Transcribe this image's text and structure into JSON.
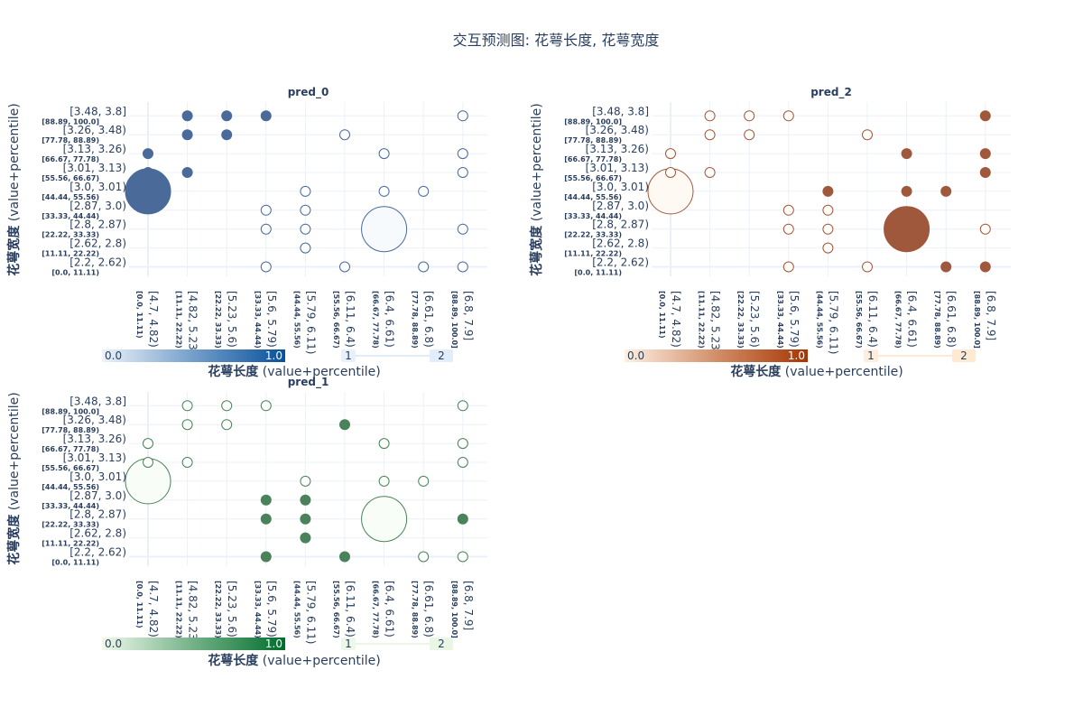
{
  "title": "交互预测图: 花萼长度, 花萼宽度",
  "x_tick_labels": [
    "[4.7, 4.82)",
    "[4.82, 5.23)",
    "[5.23, 5.6)",
    "[5.6, 5.79)",
    "[5.79, 6.11)",
    "[6.11, 6.4)",
    "[6.4, 6.61)",
    "[6.61, 6.8)",
    "[6.8, 7.9]"
  ],
  "x_tick_sublabels": [
    "[0.0, 11.11)",
    "[11.11, 22.22)",
    "[22.22, 33.33)",
    "[33.33, 44.44)",
    "[44.44, 55.56)",
    "[55.56, 66.67)",
    "[66.67, 77.78)",
    "[77.78, 88.89)",
    "[88.89, 100.0]"
  ],
  "y_tick_labels": [
    "[2.2, 2.62)",
    "[2.62, 2.8)",
    "[2.8, 2.87)",
    "[2.87, 3.0)",
    "[3.0, 3.01)",
    "[3.01, 3.13)",
    "[3.13, 3.26)",
    "[3.26, 3.48)",
    "[3.48, 3.8]"
  ],
  "y_tick_sublabels": [
    "[0.0, 11.11)",
    "[11.11, 22.22)",
    "[22.22, 33.33)",
    "[33.33, 44.44)",
    "[44.44, 55.56)",
    "[55.56, 66.67)",
    "[66.67, 77.78)",
    "[77.78, 88.89)",
    "[88.89, 100.0]"
  ],
  "xlabel_bold": "花萼长度",
  "xlabel_rest": " (value+percentile)",
  "ylabel_bold": "花萼宽度",
  "ylabel_rest": " (value+percentile)",
  "colorbar_min": "0.0",
  "colorbar_max": "1.0",
  "size_legend_min": "1",
  "size_legend_max": "2",
  "chart_data": [
    {
      "type": "scatter",
      "title": "pred_0",
      "colormap": [
        "#deebf7",
        "#08519c"
      ],
      "marker_color": "#4a6a99",
      "points": [
        {
          "x": 0,
          "y": 4,
          "value": 1.0,
          "count": 2
        },
        {
          "x": 0,
          "y": 5,
          "value": 1.0,
          "count": 1
        },
        {
          "x": 0,
          "y": 6,
          "value": 1.0,
          "count": 1
        },
        {
          "x": 1,
          "y": 5,
          "value": 1.0,
          "count": 1
        },
        {
          "x": 1,
          "y": 7,
          "value": 1.0,
          "count": 1
        },
        {
          "x": 1,
          "y": 8,
          "value": 1.0,
          "count": 1
        },
        {
          "x": 2,
          "y": 7,
          "value": 1.0,
          "count": 1
        },
        {
          "x": 2,
          "y": 8,
          "value": 1.0,
          "count": 1
        },
        {
          "x": 3,
          "y": 8,
          "value": 1.0,
          "count": 1
        },
        {
          "x": 3,
          "y": 3,
          "value": 0.0,
          "count": 1
        },
        {
          "x": 3,
          "y": 2,
          "value": 0.0,
          "count": 1
        },
        {
          "x": 3,
          "y": 0,
          "value": 0.0,
          "count": 1
        },
        {
          "x": 4,
          "y": 4,
          "value": 0.0,
          "count": 1
        },
        {
          "x": 4,
          "y": 3,
          "value": 0.0,
          "count": 1
        },
        {
          "x": 4,
          "y": 2,
          "value": 0.0,
          "count": 1
        },
        {
          "x": 4,
          "y": 1,
          "value": 0.0,
          "count": 1
        },
        {
          "x": 5,
          "y": 7,
          "value": 0.0,
          "count": 1
        },
        {
          "x": 5,
          "y": 0,
          "value": 0.0,
          "count": 1
        },
        {
          "x": 6,
          "y": 6,
          "value": 0.0,
          "count": 1
        },
        {
          "x": 6,
          "y": 4,
          "value": 0.0,
          "count": 1
        },
        {
          "x": 6,
          "y": 2,
          "value": 0.0,
          "count": 2
        },
        {
          "x": 7,
          "y": 4,
          "value": 0.0,
          "count": 1
        },
        {
          "x": 7,
          "y": 0,
          "value": 0.0,
          "count": 1
        },
        {
          "x": 8,
          "y": 8,
          "value": 0.0,
          "count": 1
        },
        {
          "x": 8,
          "y": 6,
          "value": 0.0,
          "count": 1
        },
        {
          "x": 8,
          "y": 5,
          "value": 0.0,
          "count": 1
        },
        {
          "x": 8,
          "y": 2,
          "value": 0.0,
          "count": 1
        },
        {
          "x": 8,
          "y": 0,
          "value": 0.0,
          "count": 1
        }
      ]
    },
    {
      "type": "scatter",
      "title": "pred_2",
      "colormap": [
        "#fee6ce",
        "#a63603"
      ],
      "marker_color": "#a0583d",
      "points": [
        {
          "x": 0,
          "y": 4,
          "value": 0.0,
          "count": 2
        },
        {
          "x": 0,
          "y": 5,
          "value": 0.0,
          "count": 1
        },
        {
          "x": 0,
          "y": 6,
          "value": 0.0,
          "count": 1
        },
        {
          "x": 1,
          "y": 5,
          "value": 0.0,
          "count": 1
        },
        {
          "x": 1,
          "y": 7,
          "value": 0.0,
          "count": 1
        },
        {
          "x": 1,
          "y": 8,
          "value": 0.0,
          "count": 1
        },
        {
          "x": 2,
          "y": 7,
          "value": 0.0,
          "count": 1
        },
        {
          "x": 2,
          "y": 8,
          "value": 0.0,
          "count": 1
        },
        {
          "x": 3,
          "y": 8,
          "value": 0.0,
          "count": 1
        },
        {
          "x": 3,
          "y": 3,
          "value": 0.0,
          "count": 1
        },
        {
          "x": 3,
          "y": 2,
          "value": 0.0,
          "count": 1
        },
        {
          "x": 3,
          "y": 0,
          "value": 0.0,
          "count": 1
        },
        {
          "x": 4,
          "y": 4,
          "value": 1.0,
          "count": 1
        },
        {
          "x": 4,
          "y": 3,
          "value": 0.0,
          "count": 1
        },
        {
          "x": 4,
          "y": 2,
          "value": 0.0,
          "count": 1
        },
        {
          "x": 4,
          "y": 1,
          "value": 0.0,
          "count": 1
        },
        {
          "x": 5,
          "y": 7,
          "value": 0.0,
          "count": 1
        },
        {
          "x": 5,
          "y": 0,
          "value": 0.0,
          "count": 1
        },
        {
          "x": 6,
          "y": 6,
          "value": 1.0,
          "count": 1
        },
        {
          "x": 6,
          "y": 4,
          "value": 1.0,
          "count": 1
        },
        {
          "x": 6,
          "y": 2,
          "value": 1.0,
          "count": 2
        },
        {
          "x": 7,
          "y": 4,
          "value": 1.0,
          "count": 1
        },
        {
          "x": 7,
          "y": 0,
          "value": 1.0,
          "count": 1
        },
        {
          "x": 8,
          "y": 8,
          "value": 1.0,
          "count": 1
        },
        {
          "x": 8,
          "y": 6,
          "value": 1.0,
          "count": 1
        },
        {
          "x": 8,
          "y": 5,
          "value": 1.0,
          "count": 1
        },
        {
          "x": 8,
          "y": 2,
          "value": 0.0,
          "count": 1
        },
        {
          "x": 8,
          "y": 0,
          "value": 1.0,
          "count": 1
        }
      ]
    },
    {
      "type": "scatter",
      "title": "pred_1",
      "colormap": [
        "#e5f5e0",
        "#006d2c"
      ],
      "marker_color": "#4a8259",
      "points": [
        {
          "x": 0,
          "y": 4,
          "value": 0.0,
          "count": 2
        },
        {
          "x": 0,
          "y": 5,
          "value": 0.0,
          "count": 1
        },
        {
          "x": 0,
          "y": 6,
          "value": 0.0,
          "count": 1
        },
        {
          "x": 1,
          "y": 5,
          "value": 0.0,
          "count": 1
        },
        {
          "x": 1,
          "y": 7,
          "value": 0.0,
          "count": 1
        },
        {
          "x": 1,
          "y": 8,
          "value": 0.0,
          "count": 1
        },
        {
          "x": 2,
          "y": 7,
          "value": 0.0,
          "count": 1
        },
        {
          "x": 2,
          "y": 8,
          "value": 0.0,
          "count": 1
        },
        {
          "x": 3,
          "y": 8,
          "value": 0.0,
          "count": 1
        },
        {
          "x": 3,
          "y": 3,
          "value": 1.0,
          "count": 1
        },
        {
          "x": 3,
          "y": 2,
          "value": 1.0,
          "count": 1
        },
        {
          "x": 3,
          "y": 0,
          "value": 1.0,
          "count": 1
        },
        {
          "x": 4,
          "y": 4,
          "value": 0.0,
          "count": 1
        },
        {
          "x": 4,
          "y": 3,
          "value": 1.0,
          "count": 1
        },
        {
          "x": 4,
          "y": 2,
          "value": 1.0,
          "count": 1
        },
        {
          "x": 4,
          "y": 1,
          "value": 1.0,
          "count": 1
        },
        {
          "x": 5,
          "y": 7,
          "value": 1.0,
          "count": 1
        },
        {
          "x": 5,
          "y": 0,
          "value": 1.0,
          "count": 1
        },
        {
          "x": 6,
          "y": 6,
          "value": 0.0,
          "count": 1
        },
        {
          "x": 6,
          "y": 4,
          "value": 0.0,
          "count": 1
        },
        {
          "x": 6,
          "y": 2,
          "value": 0.0,
          "count": 2
        },
        {
          "x": 7,
          "y": 4,
          "value": 0.0,
          "count": 1
        },
        {
          "x": 7,
          "y": 0,
          "value": 0.0,
          "count": 1
        },
        {
          "x": 8,
          "y": 8,
          "value": 0.0,
          "count": 1
        },
        {
          "x": 8,
          "y": 6,
          "value": 0.0,
          "count": 1
        },
        {
          "x": 8,
          "y": 5,
          "value": 0.0,
          "count": 1
        },
        {
          "x": 8,
          "y": 2,
          "value": 1.0,
          "count": 1
        },
        {
          "x": 8,
          "y": 0,
          "value": 0.0,
          "count": 1
        }
      ]
    }
  ]
}
